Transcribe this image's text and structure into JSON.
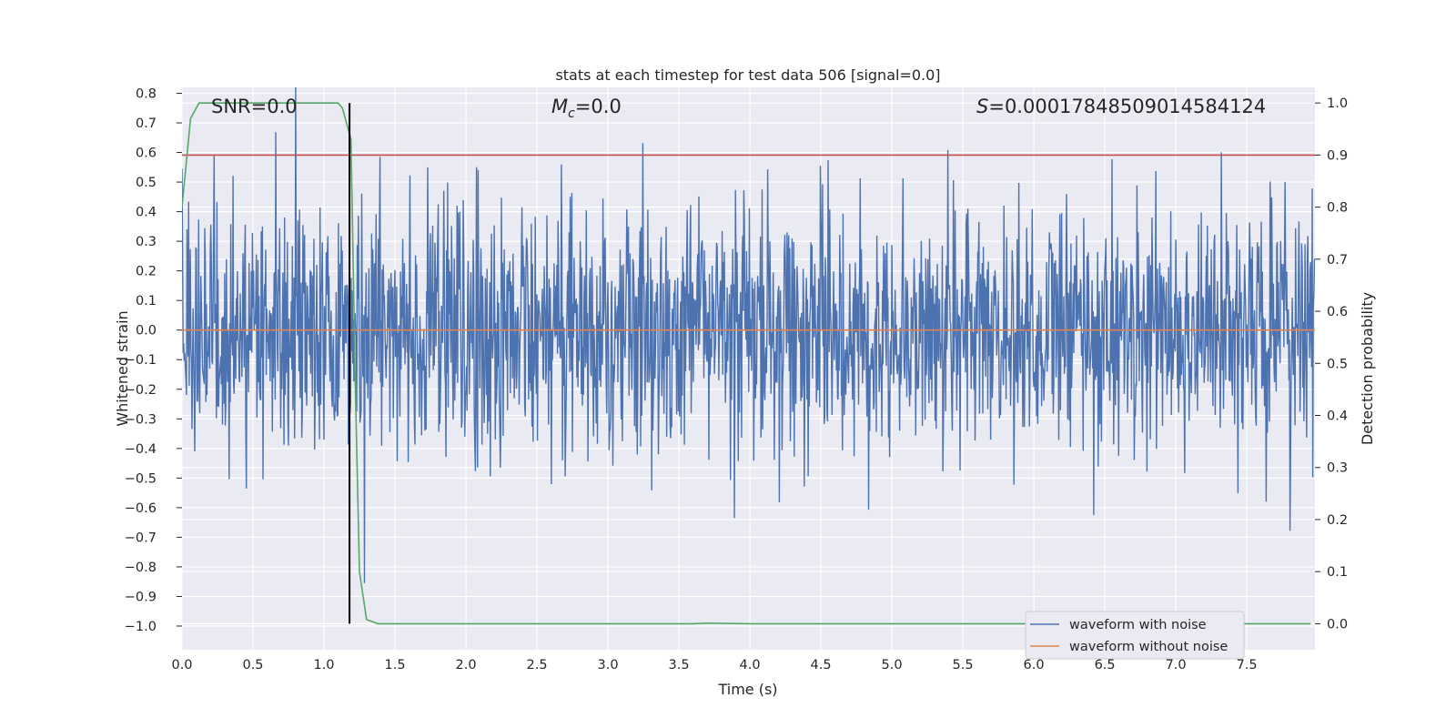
{
  "chart_data": {
    "type": "line",
    "title": "stats at each timestep for test data 506 [signal=0.0]",
    "xlabel": "Time (s)",
    "ylabel": "Whitened strain",
    "y2label": "Detection probability",
    "xlim": [
      0.0,
      7.98
    ],
    "ylim": [
      -1.08,
      0.82
    ],
    "y2lim": [
      -0.05,
      1.03
    ],
    "x_ticks": [
      "0.0",
      "0.5",
      "1.0",
      "1.5",
      "2.0",
      "2.5",
      "3.0",
      "3.5",
      "4.0",
      "4.5",
      "5.0",
      "5.5",
      "6.0",
      "6.5",
      "7.0",
      "7.5"
    ],
    "y_ticks": [
      "0.8",
      "0.7",
      "0.6",
      "0.5",
      "0.4",
      "0.3",
      "0.2",
      "0.1",
      "0.0",
      "−0.1",
      "−0.2",
      "−0.3",
      "−0.4",
      "−0.5",
      "−0.6",
      "−0.7",
      "−0.8",
      "−0.9",
      "−1.0"
    ],
    "y2_ticks": [
      "1.0",
      "0.9",
      "0.8",
      "0.7",
      "0.6",
      "0.5",
      "0.4",
      "0.3",
      "0.2",
      "0.1",
      "0.0"
    ],
    "grid": true,
    "legend_position": "lower-right",
    "annotations": {
      "snr": "SNR=0.0",
      "mc_symbol": "M",
      "mc_sub": "c",
      "mc_value": "=0.0",
      "s_symbol": "S",
      "s_value": "=0.00017848509014584124"
    },
    "series": [
      {
        "name": "waveform with noise",
        "axis": "left",
        "color": "#4c72b0",
        "description_values": "dense noise, n≈2048 samples over 0–8 s",
        "max_abs_approx": 0.86
      },
      {
        "name": "waveform without noise",
        "axis": "left",
        "color": "#dd8452",
        "x": [
          0.0,
          7.98
        ],
        "y": [
          0.0,
          0.0
        ]
      },
      {
        "axis": "right",
        "color": "#55a868",
        "x": [
          0.0,
          0.06,
          0.12,
          0.25,
          0.5,
          0.75,
          1.0,
          1.1,
          1.13,
          1.19,
          1.22,
          1.25,
          1.3,
          1.38,
          1.5,
          2.0,
          3.0,
          3.6,
          3.7,
          4.0,
          5.0,
          6.0,
          7.0,
          7.95
        ],
        "y": [
          0.8,
          0.97,
          1.0,
          1.0,
          1.0,
          1.0,
          1.0,
          1.0,
          0.99,
          0.93,
          0.47,
          0.1,
          0.008,
          0.0,
          0.0,
          0.0,
          0.0,
          0.0,
          0.001,
          0.0,
          0.0,
          0.0,
          0.0,
          0.0
        ]
      },
      {
        "axis": "right",
        "color": "#c44e52",
        "x": [
          0.0,
          7.98
        ],
        "y": [
          0.9,
          0.9
        ]
      },
      {
        "axis": "right",
        "color": "#000000",
        "x": [
          1.18,
          1.18
        ],
        "y": [
          0.0,
          1.0
        ]
      }
    ],
    "legend": [
      "waveform with noise",
      "waveform without noise"
    ]
  }
}
